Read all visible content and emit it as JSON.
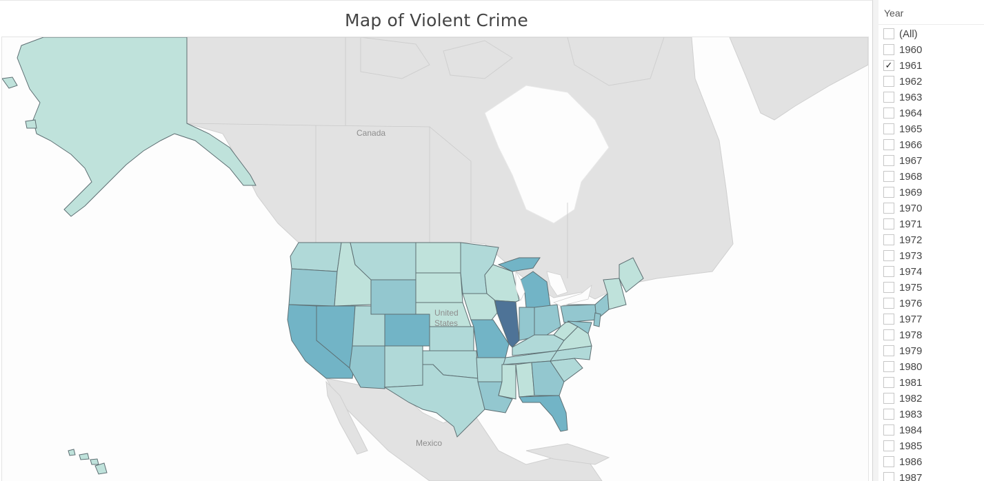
{
  "title": "Map of Violent Crime",
  "map": {
    "labels": {
      "canada": "Canada",
      "usa_line1": "United",
      "usa_line2": "States",
      "mexico": "Mexico"
    },
    "colors": {
      "land": "#e2e2e2",
      "land_stroke": "#cfcfcf",
      "water": "#fdfdfd",
      "lightest": "#bfe2db",
      "light": "#b0d9d8",
      "mid": "#93c7cf",
      "strong": "#72b4c6",
      "illinois": "#4e7397"
    }
  },
  "filter": {
    "title": "Year",
    "options": [
      {
        "label": "(All)",
        "checked": false
      },
      {
        "label": "1960",
        "checked": false
      },
      {
        "label": "1961",
        "checked": true
      },
      {
        "label": "1962",
        "checked": false
      },
      {
        "label": "1963",
        "checked": false
      },
      {
        "label": "1964",
        "checked": false
      },
      {
        "label": "1965",
        "checked": false
      },
      {
        "label": "1966",
        "checked": false
      },
      {
        "label": "1967",
        "checked": false
      },
      {
        "label": "1968",
        "checked": false
      },
      {
        "label": "1969",
        "checked": false
      },
      {
        "label": "1970",
        "checked": false
      },
      {
        "label": "1971",
        "checked": false
      },
      {
        "label": "1972",
        "checked": false
      },
      {
        "label": "1973",
        "checked": false
      },
      {
        "label": "1974",
        "checked": false
      },
      {
        "label": "1975",
        "checked": false
      },
      {
        "label": "1976",
        "checked": false
      },
      {
        "label": "1977",
        "checked": false
      },
      {
        "label": "1978",
        "checked": false
      },
      {
        "label": "1979",
        "checked": false
      },
      {
        "label": "1980",
        "checked": false
      },
      {
        "label": "1981",
        "checked": false
      },
      {
        "label": "1982",
        "checked": false
      },
      {
        "label": "1983",
        "checked": false
      },
      {
        "label": "1984",
        "checked": false
      },
      {
        "label": "1985",
        "checked": false
      },
      {
        "label": "1986",
        "checked": false
      },
      {
        "label": "1987",
        "checked": false
      }
    ],
    "check_glyph": "✓"
  }
}
